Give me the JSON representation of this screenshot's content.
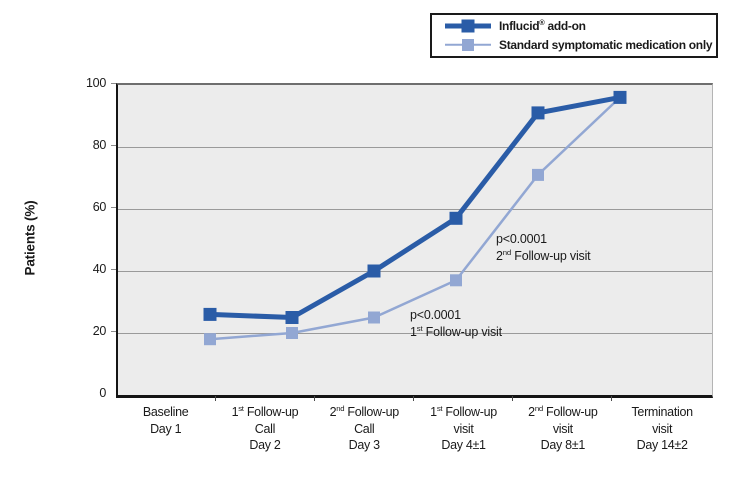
{
  "chart_data": {
    "type": "line",
    "title": "",
    "ylabel": "Patients (%)",
    "ylim": [
      0,
      100
    ],
    "yticks": [
      0,
      20,
      40,
      60,
      80,
      100
    ],
    "grid": "horizontal",
    "legend_position": "top-right",
    "plot_background": "#ececec",
    "gridline_color": "#9a9a9a",
    "categories": [
      [
        "Baseline",
        "Day 1"
      ],
      [
        "1st Follow-up",
        "Call",
        "Day 2"
      ],
      [
        "2nd Follow-up",
        "Call",
        "Day 3"
      ],
      [
        "1st Follow-up",
        "visit",
        "Day 4±1"
      ],
      [
        "2nd Follow-up",
        "visit",
        "Day 8±1"
      ],
      [
        "Termination",
        "visit",
        "Day 14±2"
      ]
    ],
    "series": [
      {
        "name": "Influcid® add-on",
        "color": "#2a5ca7",
        "values": [
          26,
          25,
          40,
          57,
          91,
          96
        ]
      },
      {
        "name": "Standard symptomatic medication only",
        "color": "#92a7d3",
        "values": [
          18,
          20,
          25,
          37,
          71,
          96
        ]
      }
    ],
    "annotations": [
      {
        "p_text": "p<0.0001",
        "visit_text": "2nd Follow-up visit"
      },
      {
        "p_text": "p<0.0001",
        "visit_text": "1st Follow-up visit"
      }
    ]
  }
}
